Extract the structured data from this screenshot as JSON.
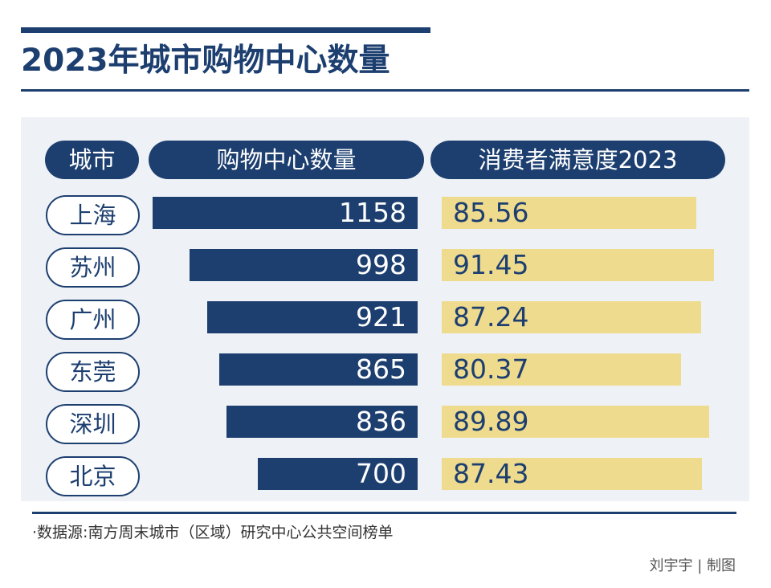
{
  "chart_data": {
    "type": "bar",
    "title": "2023年城市购物中心数量",
    "columns": [
      "城市",
      "购物中心数量",
      "消费者满意度2023"
    ],
    "categories": [
      "上海",
      "苏州",
      "广州",
      "东莞",
      "深圳",
      "北京"
    ],
    "series": [
      {
        "name": "购物中心数量",
        "values": [
          1158,
          998,
          921,
          865,
          836,
          700
        ]
      },
      {
        "name": "消费者满意度2023",
        "values": [
          85.56,
          91.45,
          87.24,
          80.37,
          89.89,
          87.43
        ]
      }
    ],
    "value_labels": [
      [
        "1158",
        "998",
        "921",
        "865",
        "836",
        "700"
      ],
      [
        "85.56",
        "91.45",
        "87.24",
        "80.37",
        "89.89",
        "87.43"
      ]
    ],
    "colors": {
      "count_bar": "#1d3f70",
      "score_bar": "#efdb8e",
      "panel": "#eef1f6"
    }
  },
  "source": "·数据源:南方周末城市（区域）研究中心公共空间榜单",
  "credit": "刘宇宇 | 制图"
}
